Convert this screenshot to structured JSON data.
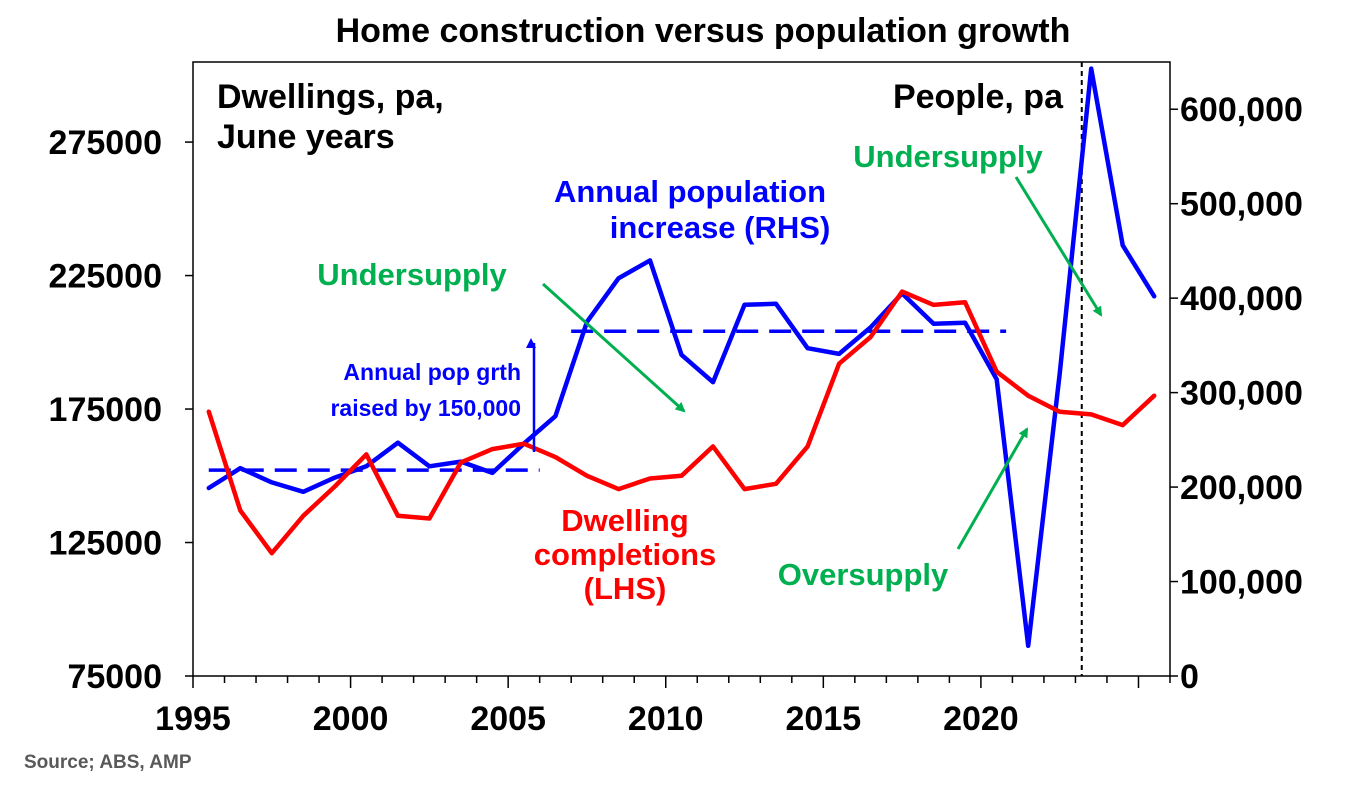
{
  "chart_data": {
    "type": "line",
    "title": "Home construction versus population growth",
    "source": "Source; ABS, AMP",
    "x": [
      1995.5,
      1996.5,
      1997.5,
      1998.5,
      1999.5,
      2000.5,
      2001.5,
      2002.5,
      2003.5,
      2004.5,
      2005.5,
      2006.5,
      2007.5,
      2008.5,
      2009.5,
      2010.5,
      2011.5,
      2012.5,
      2013.5,
      2014.5,
      2015.5,
      2016.5,
      2017.5,
      2018.5,
      2019.5,
      2020.5,
      2021.5,
      2022.5,
      2023.5,
      2024.5,
      2025.5
    ],
    "x_ticks": [
      "1995",
      "2000",
      "2005",
      "2010",
      "2015",
      "2020"
    ],
    "x_range": [
      1995,
      2026
    ],
    "y_left": {
      "label_lines": [
        "Dwellings, pa,",
        "June years"
      ],
      "range": [
        75000,
        305000
      ],
      "ticks": [
        "75000",
        "125000",
        "175000",
        "225000",
        "275000"
      ]
    },
    "y_right": {
      "label": "People, pa",
      "range": [
        0,
        650000
      ],
      "ticks": [
        "0",
        "100,000",
        "200,000",
        "300,000",
        "400,000",
        "500,000",
        "600,000"
      ]
    },
    "series": [
      {
        "name_lines": [
          "Annual population",
          "increase (RHS)"
        ],
        "axis": "right",
        "color": "#0000ff",
        "values": [
          199000,
          220000,
          205000,
          195000,
          210000,
          222000,
          247000,
          222000,
          227000,
          215000,
          246000,
          275000,
          375000,
          421000,
          440000,
          340000,
          311000,
          393000,
          394000,
          347000,
          341000,
          369000,
          405000,
          373000,
          374000,
          314000,
          32000,
          320000,
          643000,
          456000,
          402000
        ]
      },
      {
        "name_lines": [
          "Dwelling",
          "completions",
          "(LHS)"
        ],
        "axis": "left",
        "color": "#ff0000",
        "values": [
          174000,
          137000,
          121000,
          135000,
          146000,
          158000,
          135000,
          134000,
          155000,
          160000,
          162000,
          157000,
          150000,
          145000,
          149000,
          150000,
          161000,
          145000,
          147000,
          161000,
          192000,
          202000,
          219000,
          214000,
          215000,
          189000,
          180000,
          174000,
          173000,
          169000,
          180000
        ]
      }
    ],
    "reference_lines": [
      {
        "axis": "right",
        "value": 218000,
        "x_from": 1995.5,
        "x_to": 2006.0,
        "color": "#0000ff",
        "dashed": true
      },
      {
        "axis": "right",
        "value": 365000,
        "x_from": 2007.0,
        "x_to": 2020.8,
        "color": "#0000ff",
        "dashed": true
      },
      {
        "axis": "x",
        "value": 2023.2,
        "color": "#000000",
        "dashed": true
      }
    ],
    "annotations": [
      {
        "lines": [
          "Annual pop grth",
          "raised by 150,000"
        ],
        "color": "#0000ff"
      },
      {
        "text": "Undersupply",
        "color": "#00b050"
      },
      {
        "text": "Undersupply",
        "color": "#00b050"
      },
      {
        "text": "Oversupply",
        "color": "#00b050"
      }
    ]
  }
}
